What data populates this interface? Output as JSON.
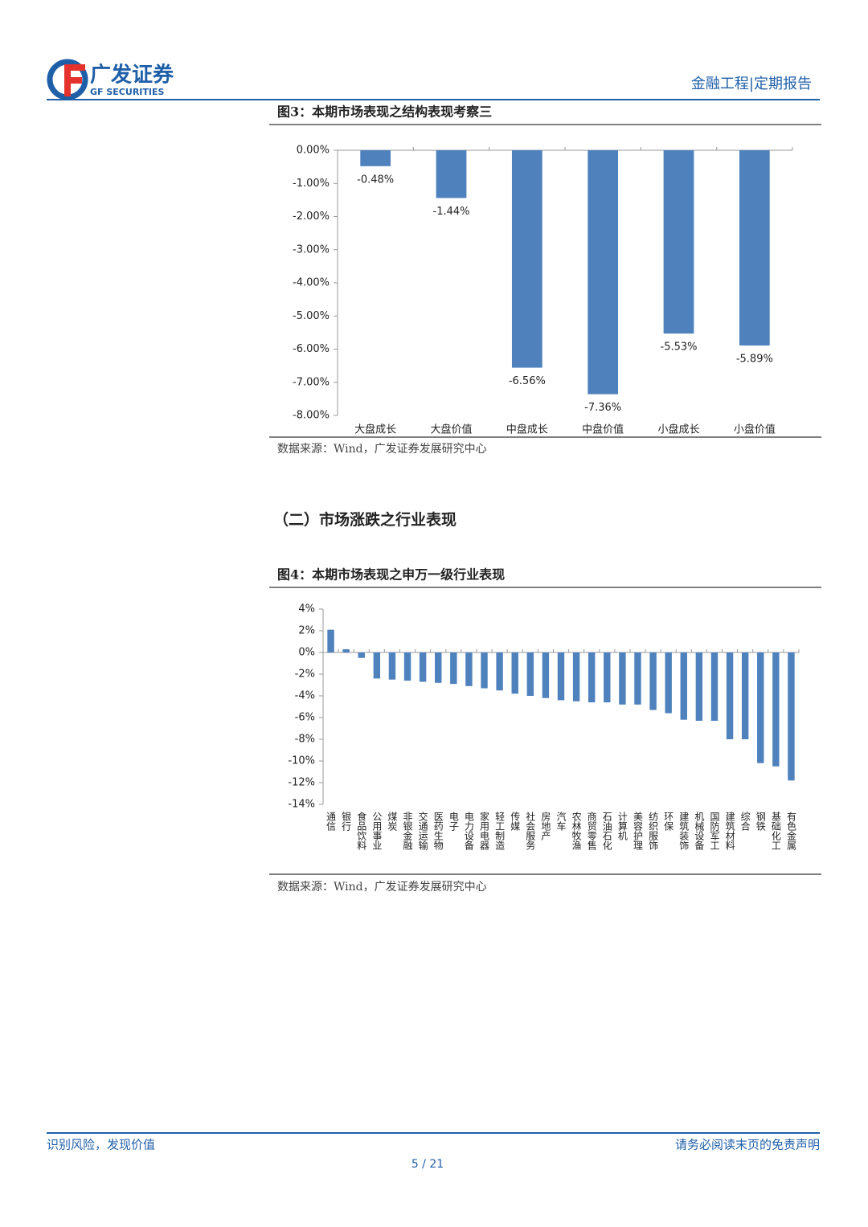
{
  "header": {
    "company": "广发证券",
    "company_en": "GF SECURITIES",
    "report_type": "金融工程|定期报告"
  },
  "section_title": "（二）市场涨跌之行业表现",
  "chart_data": [
    {
      "type": "bar",
      "title": "图3：本期市场表现之结构表现考察三",
      "categories": [
        "大盘成长",
        "大盘价值",
        "中盘成长",
        "中盘价值",
        "小盘成长",
        "小盘价值"
      ],
      "values": [
        -0.48,
        -1.44,
        -6.56,
        -7.36,
        -5.53,
        -5.89
      ],
      "value_labels": [
        "-0.48%",
        "-1.44%",
        "-6.56%",
        "-7.36%",
        "-5.53%",
        "-5.89%"
      ],
      "color": "#4f81bd",
      "ylim": [
        -8,
        0
      ],
      "yticks": [
        {
          "value": 0,
          "label": "0.00%"
        },
        {
          "value": -1,
          "label": "-1.00%"
        },
        {
          "value": -2,
          "label": "-2.00%"
        },
        {
          "value": -3,
          "label": "-3.00%"
        },
        {
          "value": -4,
          "label": "-4.00%"
        },
        {
          "value": -5,
          "label": "-5.00%"
        },
        {
          "value": -6,
          "label": "-6.00%"
        },
        {
          "value": -7,
          "label": "-7.00%"
        },
        {
          "value": -8,
          "label": "-8.00%"
        }
      ],
      "grid": false,
      "source": "数据来源：Wind，广发证券发展研究中心"
    },
    {
      "type": "bar",
      "title": "图4：本期市场表现之申万一级行业表现",
      "categories": [
        "通信",
        "银行",
        "食品饮料",
        "公用事业",
        "煤炭",
        "非银金融",
        "交通运输",
        "医药生物",
        "电子",
        "电力设备",
        "家用电器",
        "轻工制造",
        "传媒",
        "社会服务",
        "房地产",
        "汽车",
        "农林牧渔",
        "商贸零售",
        "石油石化",
        "计算机",
        "美容护理",
        "纺织服饰",
        "环保",
        "建筑装饰",
        "机械设备",
        "国防军工",
        "建筑材料",
        "综合",
        "钢铁",
        "基础化工",
        "有色金属"
      ],
      "values": [
        2.1,
        0.3,
        -0.5,
        -2.4,
        -2.5,
        -2.6,
        -2.7,
        -2.8,
        -2.9,
        -3.1,
        -3.3,
        -3.5,
        -3.8,
        -4.0,
        -4.2,
        -4.4,
        -4.5,
        -4.6,
        -4.6,
        -4.8,
        -4.8,
        -5.3,
        -5.6,
        -6.2,
        -6.3,
        -6.3,
        -8.0,
        -8.0,
        -10.2,
        -10.5,
        -11.8
      ],
      "color": "#4f81bd",
      "ylim": [
        -14,
        4
      ],
      "yticks": [
        {
          "value": 4,
          "label": "4%"
        },
        {
          "value": 2,
          "label": "2%"
        },
        {
          "value": 0,
          "label": "0%"
        },
        {
          "value": -2,
          "label": "-2%"
        },
        {
          "value": -4,
          "label": "-4%"
        },
        {
          "value": -6,
          "label": "-6%"
        },
        {
          "value": -8,
          "label": "-8%"
        },
        {
          "value": -10,
          "label": "-10%"
        },
        {
          "value": -12,
          "label": "-12%"
        },
        {
          "value": -14,
          "label": "-14%"
        }
      ],
      "grid": false,
      "source": "数据来源：Wind，广发证券发展研究中心"
    }
  ],
  "footer": {
    "left": "识别风险，发现价值",
    "right": "请务必阅读末页的免责声明",
    "page": "5 / 21"
  }
}
